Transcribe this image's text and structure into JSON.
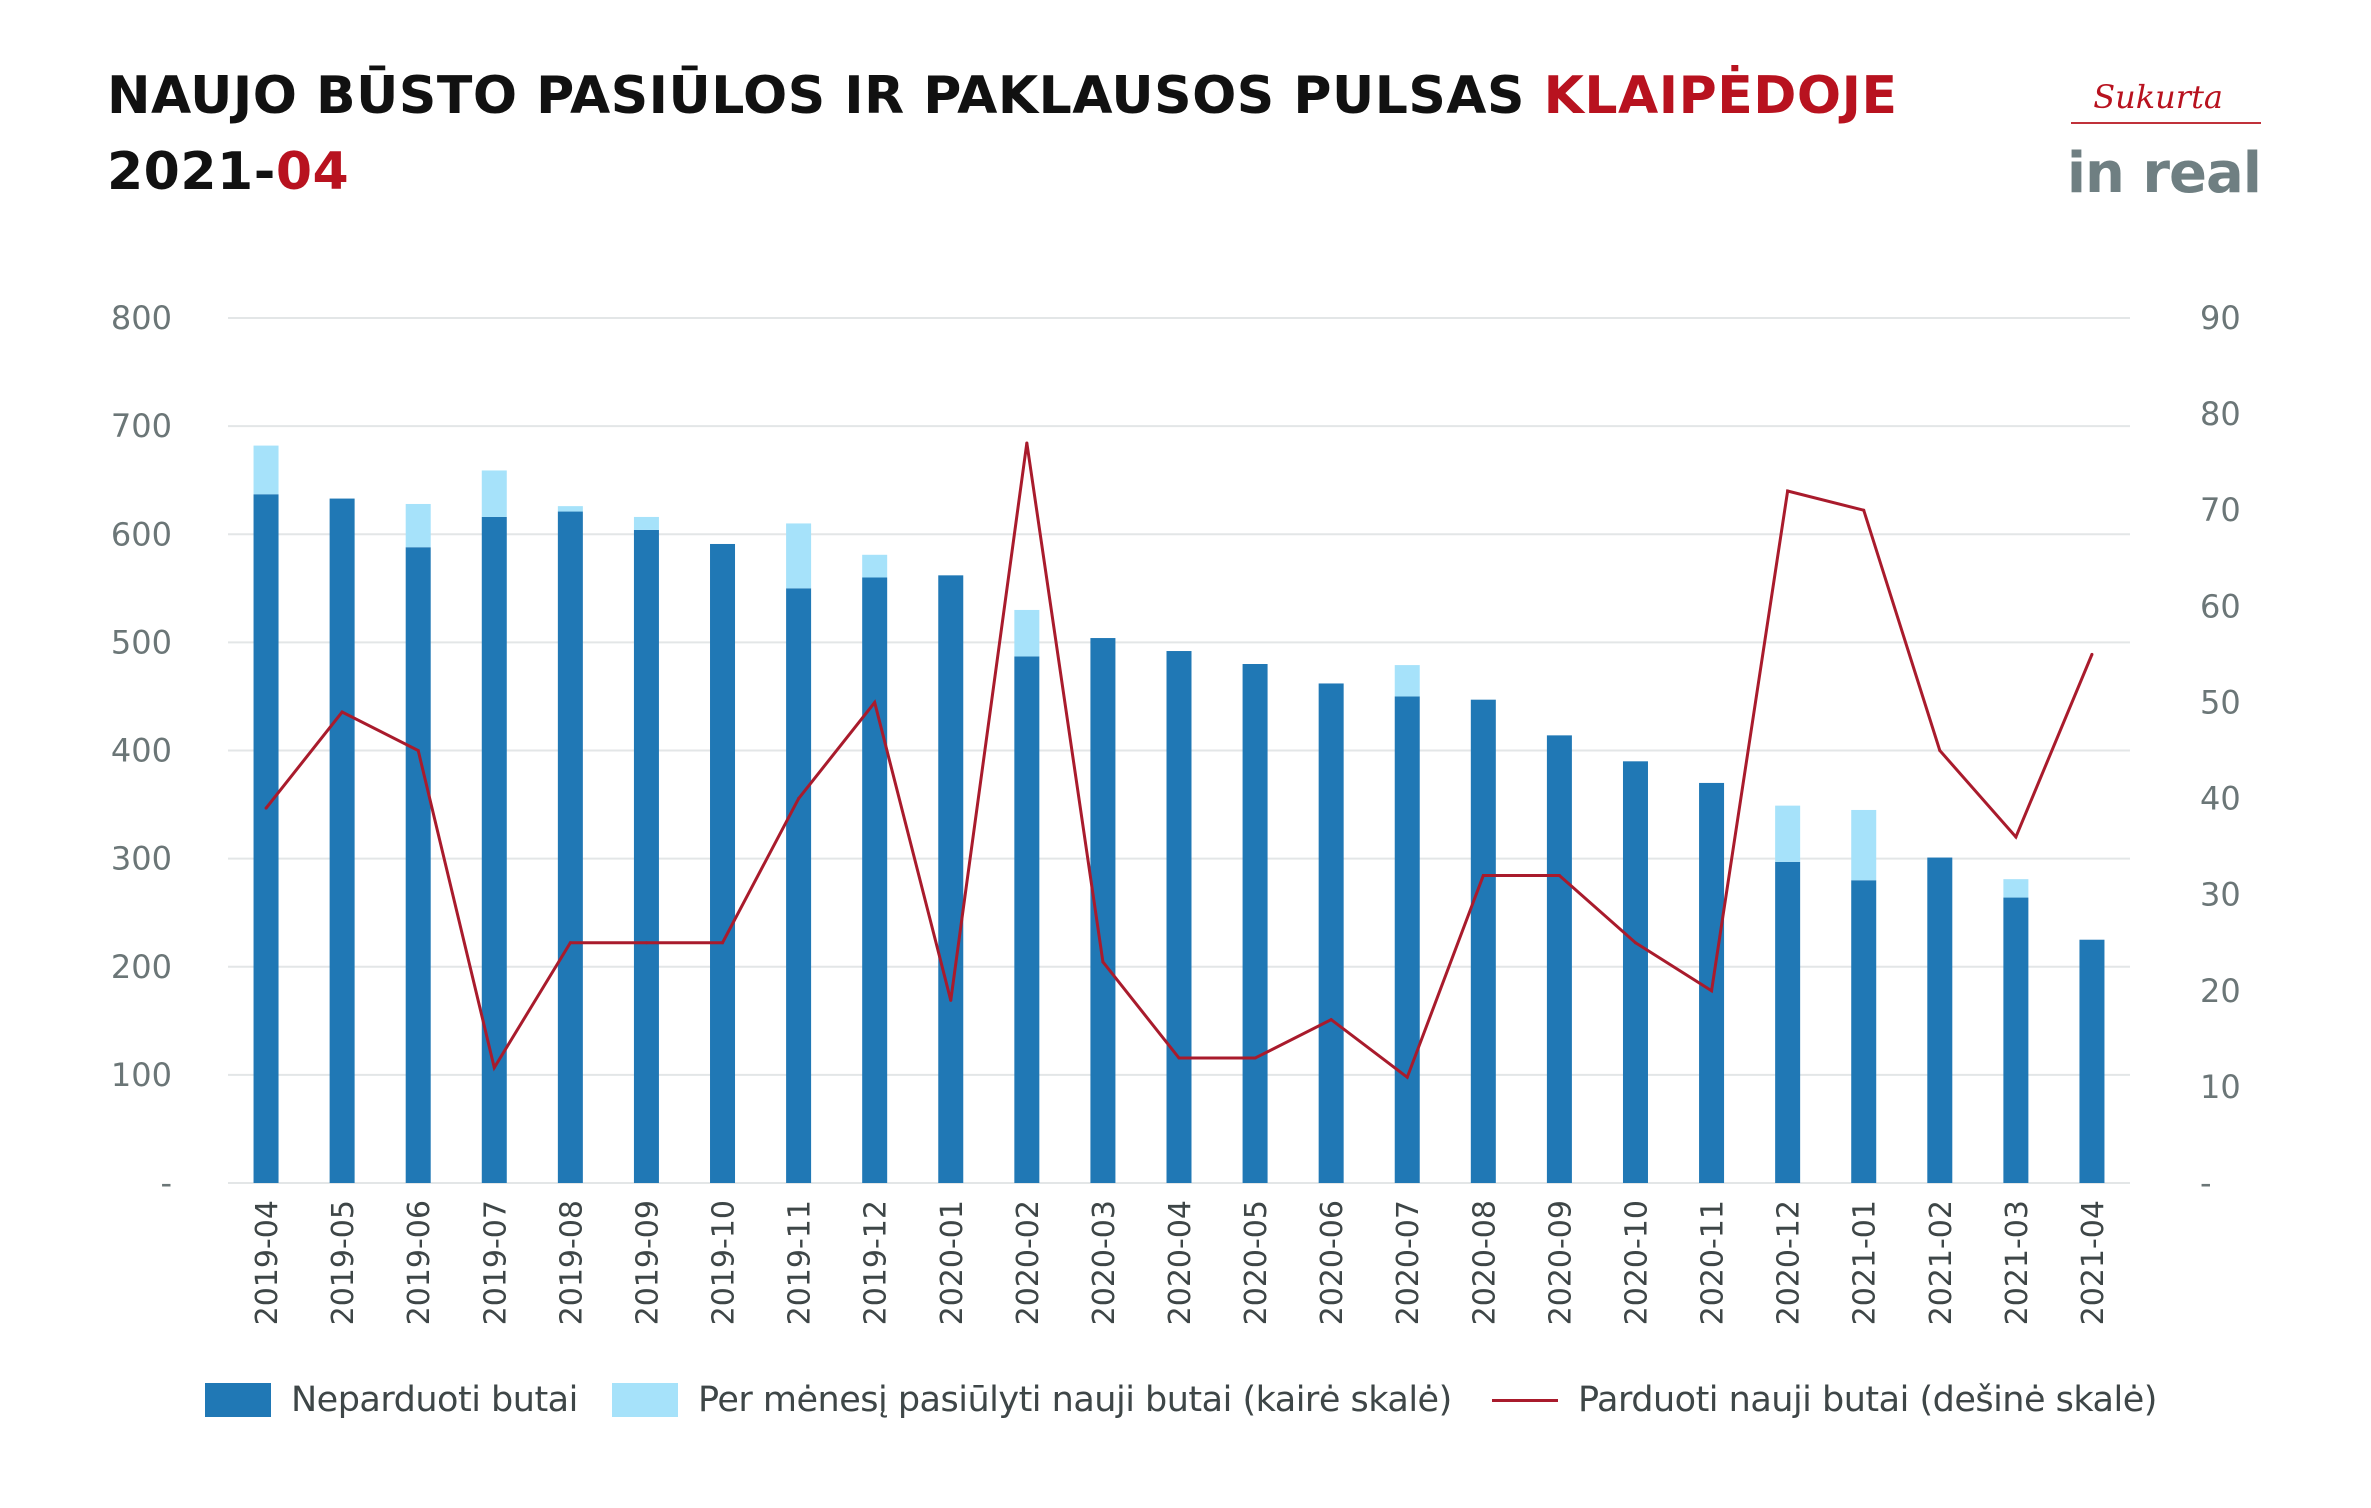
{
  "header": {
    "title_line1": "NAUJO BŪSTO PASIŪLOS IR PAKLAUSOS PULSAS",
    "title_line1_accent": "KLAIPĖDOJE",
    "title_line2_prefix": "2021-",
    "title_line2_accent": "04"
  },
  "logo": {
    "signature": "Sukurta",
    "brand": "in real"
  },
  "colors": {
    "unsold": "#2078b5",
    "offered": "#a6e2fa",
    "sold": "#a91b2c",
    "accent": "#b8121f",
    "grid": "#e3e6e7"
  },
  "chart_data": {
    "type": "bar",
    "stacked": true,
    "categories": [
      "2019-04",
      "2019-05",
      "2019-06",
      "2019-07",
      "2019-08",
      "2019-09",
      "2019-10",
      "2019-11",
      "2019-12",
      "2020-01",
      "2020-02",
      "2020-03",
      "2020-04",
      "2020-05",
      "2020-06",
      "2020-07",
      "2020-08",
      "2020-09",
      "2020-10",
      "2020-11",
      "2020-12",
      "2021-01",
      "2021-02",
      "2021-03",
      "2021-04"
    ],
    "series": [
      {
        "name": "Neparduoti butai",
        "type": "bar",
        "axis": "left",
        "values": [
          637,
          633,
          588,
          616,
          621,
          604,
          591,
          550,
          560,
          562,
          487,
          504,
          492,
          480,
          462,
          450,
          447,
          414,
          390,
          370,
          297,
          280,
          301,
          264,
          225
        ]
      },
      {
        "name": "Per mėnesį pasiūlyti nauji butai (kairė skalė)",
        "type": "bar",
        "axis": "left",
        "values": [
          45,
          0,
          40,
          43,
          5,
          12,
          0,
          60,
          21,
          0,
          43,
          0,
          0,
          0,
          0,
          29,
          0,
          0,
          0,
          0,
          52,
          65,
          0,
          17,
          0
        ]
      },
      {
        "name": "Parduoti nauji butai (dešinė skalė)",
        "type": "line",
        "axis": "right",
        "values": [
          39,
          49,
          45,
          12,
          25,
          25,
          25,
          40,
          50,
          19,
          77,
          23,
          13,
          13,
          17,
          11,
          32,
          32,
          25,
          20,
          72,
          70,
          45,
          36,
          55
        ]
      }
    ],
    "y_left": {
      "ylim": [
        0,
        800
      ],
      "ticks": [
        "-",
        "100",
        "200",
        "300",
        "400",
        "500",
        "600",
        "700",
        "800"
      ]
    },
    "y_right": {
      "ylim": [
        0,
        90
      ],
      "ticks": [
        "-",
        "10",
        "20",
        "30",
        "40",
        "50",
        "60",
        "70",
        "80",
        "90"
      ]
    },
    "grid": true,
    "legend_position": "bottom"
  },
  "legend": [
    {
      "label": "Neparduoti butai",
      "kind": "bar",
      "color": "#2078b5"
    },
    {
      "label": "Per mėnesį pasiūlyti nauji butai (kairė skalė)",
      "kind": "bar",
      "color": "#a6e2fa"
    },
    {
      "label": "Parduoti nauji butai (dešinė skalė)",
      "kind": "line",
      "color": "#a91b2c"
    }
  ]
}
